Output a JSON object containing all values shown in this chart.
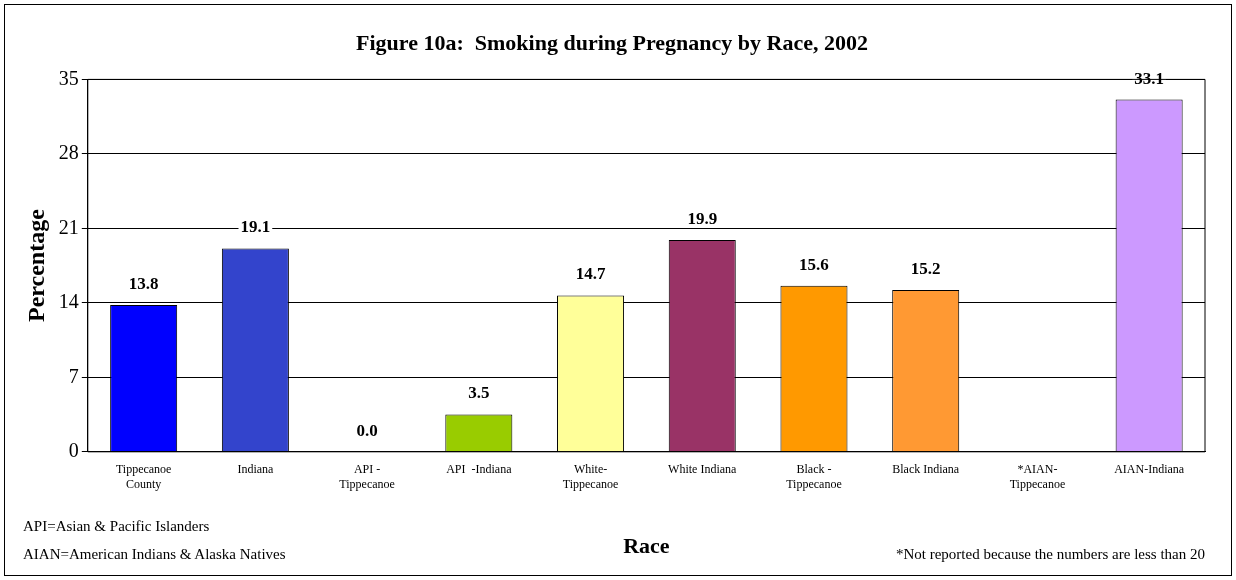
{
  "chart_data": {
    "type": "bar",
    "title": "Figure 10a:  Smoking during Pregnancy by Race, 2002",
    "xlabel": "Race",
    "ylabel": "Percentage",
    "categories": [
      "Tippecanoe\nCounty",
      "Indiana",
      "API -\nTippecanoe",
      "API  -Indiana",
      "White-\nTippecanoe",
      "White Indiana",
      "Black -\nTippecanoe",
      "Black Indiana",
      "*AIAN-\nTippecanoe",
      "AIAN-Indiana"
    ],
    "values": [
      13.8,
      19.1,
      0.0,
      3.5,
      14.7,
      19.9,
      15.6,
      15.2,
      null,
      33.1
    ],
    "colors": [
      "#0000ff",
      "#3344cc",
      "#000000",
      "#99cc00",
      "#ffff99",
      "#993366",
      "#ff9900",
      "#ff9933",
      "#cc99ff",
      "#cc99ff"
    ],
    "value_labels": [
      "13.8",
      "19.1",
      "0.0",
      "3.5",
      "14.7",
      "19.9",
      "15.6",
      "15.2",
      null,
      "33.1"
    ],
    "ylim": [
      0,
      35
    ],
    "yticks": [
      0,
      7,
      14,
      21,
      28,
      35
    ],
    "grid": "y",
    "annotations": [
      "API=Asian & Pacific Islanders",
      "AIAN=American Indians & Alaska Natives",
      "*Not reported because the numbers are less than 20"
    ]
  }
}
